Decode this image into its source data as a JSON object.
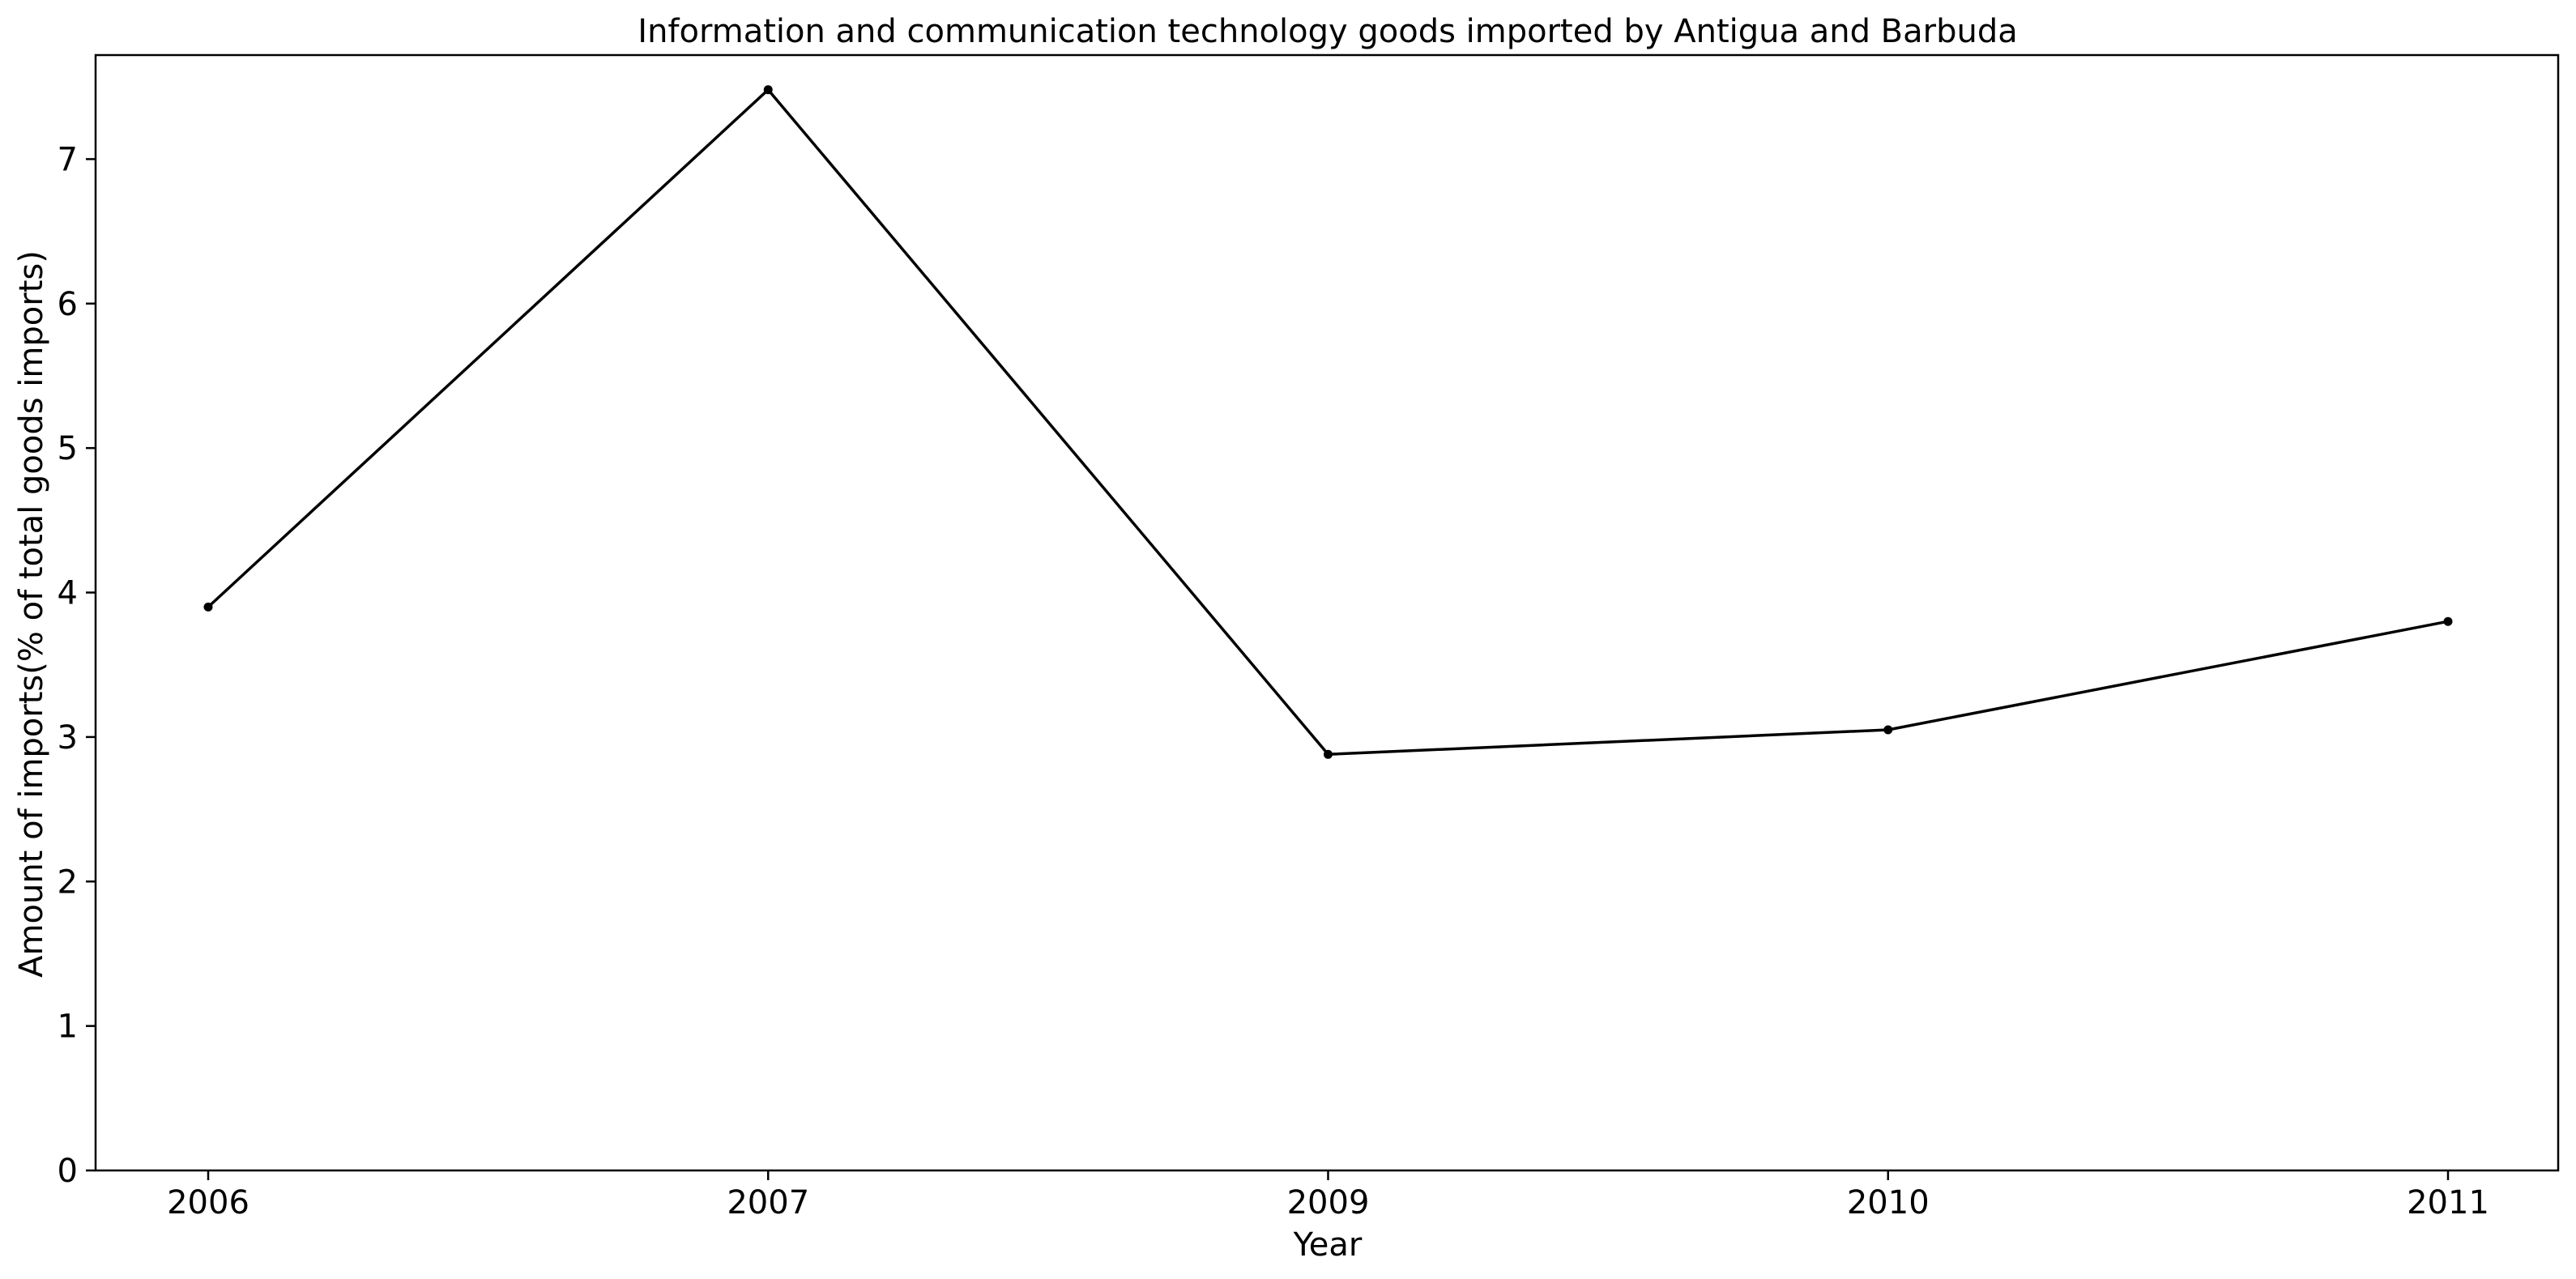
{
  "chart_data": {
    "type": "line",
    "title": "Information and communication technology goods imported by Antigua and Barbuda",
    "xlabel": "Year",
    "ylabel": "Amount of imports(% of total goods imports)",
    "categories": [
      "2006",
      "2007",
      "2009",
      "2010",
      "2011"
    ],
    "series": [
      {
        "values": [
          3.9,
          7.48,
          2.88,
          3.05,
          3.8
        ],
        "color": "#000000"
      }
    ],
    "ylim": [
      0,
      7.72
    ],
    "yticks": [
      0,
      1,
      2,
      3,
      4,
      5,
      6,
      7
    ],
    "ytick_labels": [
      "0",
      "1",
      "2",
      "3",
      "4",
      "5",
      "6",
      "7"
    ],
    "grid": false,
    "markers": true
  }
}
